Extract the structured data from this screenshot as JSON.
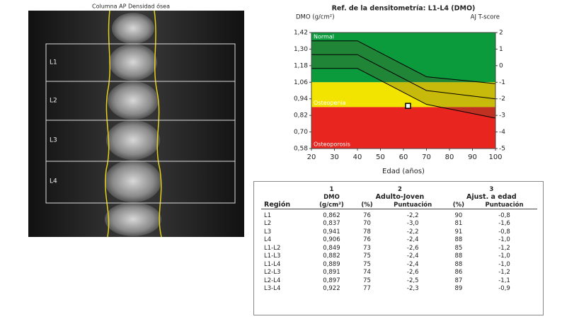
{
  "scan": {
    "title": "Columna AP Densidad ósea",
    "labels": [
      "L1",
      "L2",
      "L3",
      "L4"
    ]
  },
  "chart_data": {
    "type": "line",
    "title": "Ref. de la densitometría: L1-L4 (DMO)",
    "y_label": "DMO (g/cm²)",
    "y2_label": "AJ T-score",
    "x_label": "Edad (años)",
    "xlim": [
      20,
      100
    ],
    "xticks": [
      20,
      30,
      40,
      50,
      60,
      70,
      80,
      90,
      100
    ],
    "ylim": [
      0.58,
      1.42
    ],
    "yticks": [
      {
        "value": 1.42,
        "label": "1,42"
      },
      {
        "value": 1.3,
        "label": "1,30"
      },
      {
        "value": 1.18,
        "label": "1,18"
      },
      {
        "value": 1.06,
        "label": "1,06"
      },
      {
        "value": 0.94,
        "label": "0,94"
      },
      {
        "value": 0.82,
        "label": "0,82"
      },
      {
        "value": 0.7,
        "label": "0,70"
      },
      {
        "value": 0.58,
        "label": "0,58"
      }
    ],
    "y2lim": [
      -5,
      2
    ],
    "y2ticks": [
      2,
      1,
      0,
      -1,
      -2,
      -3,
      -4,
      -5
    ],
    "zones": [
      {
        "label": "Normal",
        "color": "#0b9a3c",
        "from": -1,
        "to": 2
      },
      {
        "label": "Osteopenia",
        "color": "#f3e400",
        "from": -2.5,
        "to": -1
      },
      {
        "label": "Osteoporosis",
        "color": "#e8261f",
        "from": -5,
        "to": -2.5
      }
    ],
    "x": [
      20,
      40,
      70,
      100
    ],
    "series": [
      {
        "color": "#000000",
        "values": [
          1.36,
          1.36,
          1.1,
          1.05
        ]
      },
      {
        "color": "#000000",
        "values": [
          1.26,
          1.26,
          1.0,
          0.94
        ]
      },
      {
        "color": "#000000",
        "values": [
          1.16,
          1.16,
          0.9,
          0.8
        ]
      }
    ],
    "point": {
      "x": 62,
      "y": 0.889
    }
  },
  "table": {
    "header": {
      "region": "Región",
      "n1": "1",
      "dmo": "DMO",
      "dmo_unit": "(g/cm²)",
      "n2": "2",
      "young": "Adulto-Joven",
      "young_pct": "(%)",
      "young_score": "Puntuación",
      "n3": "3",
      "age": "Ajust. a edad",
      "age_pct": "(%)",
      "age_score": "Puntuación"
    },
    "rows": [
      [
        "L1",
        "0,862",
        "76",
        "-2,2",
        "90",
        "-0,8"
      ],
      [
        "L2",
        "0,837",
        "70",
        "-3,0",
        "81",
        "-1,6"
      ],
      [
        "L3",
        "0,941",
        "78",
        "-2,2",
        "91",
        "-0,8"
      ],
      [
        "L4",
        "0,906",
        "76",
        "-2,4",
        "88",
        "-1,0"
      ],
      [
        "L1-L2",
        "0,849",
        "73",
        "-2,6",
        "85",
        "-1,2"
      ],
      [
        "L1-L3",
        "0,882",
        "75",
        "-2,4",
        "88",
        "-1,0"
      ],
      [
        "L1-L4",
        "0,889",
        "75",
        "-2,4",
        "88",
        "-1,0"
      ],
      [
        "L2-L3",
        "0,891",
        "74",
        "-2,6",
        "86",
        "-1,2"
      ],
      [
        "L2-L4",
        "0,897",
        "75",
        "-2,5",
        "87",
        "-1,1"
      ],
      [
        "L3-L4",
        "0,922",
        "77",
        "-2,3",
        "89",
        "-0,9"
      ]
    ]
  }
}
